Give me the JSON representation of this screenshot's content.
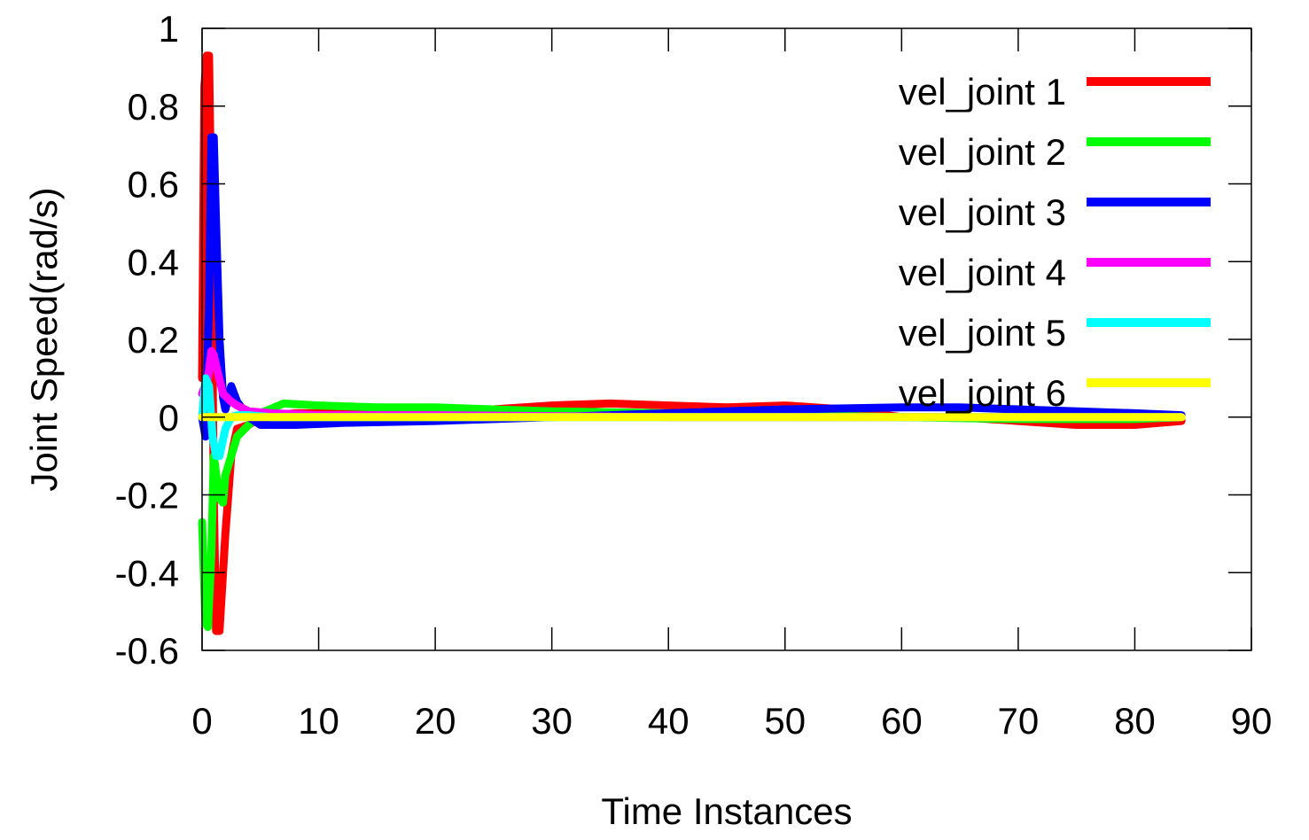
{
  "chart_data": {
    "type": "line",
    "xlabel": "Time Instances",
    "ylabel": "Joint Speed(rad/s)",
    "xlim": [
      0,
      90
    ],
    "ylim": [
      -0.6,
      1
    ],
    "x_ticks": [
      0,
      10,
      20,
      30,
      40,
      50,
      60,
      70,
      80,
      90
    ],
    "y_ticks": [
      -0.6,
      -0.4,
      -0.2,
      0,
      0.2,
      0.4,
      0.6,
      0.8,
      1
    ],
    "x_tick_labels": [
      "0",
      "10",
      "20",
      "30",
      "40",
      "50",
      "60",
      "70",
      "80",
      "90"
    ],
    "y_tick_labels": [
      "-0.6",
      "-0.4",
      "-0.2",
      "0",
      "0.2",
      "0.4",
      "0.6",
      "0.8",
      "1"
    ],
    "grid": false,
    "legend_position": "top-right",
    "series": [
      {
        "name": "vel_joint 1",
        "color": "#ff0000",
        "x": [
          0,
          0.2,
          0.4,
          0.6,
          0.8,
          1.0,
          1.2,
          1.5,
          2.0,
          2.5,
          3,
          4,
          5,
          8,
          12,
          20,
          25,
          30,
          35,
          40,
          45,
          50,
          55,
          60,
          65,
          70,
          75,
          80,
          84
        ],
        "y": [
          0.1,
          0.85,
          0.93,
          0.93,
          0.5,
          -0.2,
          -0.55,
          -0.55,
          -0.3,
          -0.1,
          -0.03,
          -0.02,
          0.0,
          0.01,
          0.01,
          0.02,
          0.02,
          0.03,
          0.035,
          0.03,
          0.025,
          0.03,
          0.02,
          0.0,
          0.0,
          -0.01,
          -0.02,
          -0.02,
          -0.01
        ]
      },
      {
        "name": "vel_joint 2",
        "color": "#00ff00",
        "x": [
          0,
          0.3,
          0.5,
          0.8,
          1.0,
          1.5,
          1.8,
          2.0,
          2.5,
          3,
          4,
          5,
          7,
          10,
          15,
          20,
          30,
          40,
          50,
          60,
          70,
          80,
          84
        ],
        "y": [
          -0.27,
          -0.53,
          -0.54,
          -0.35,
          -0.1,
          -0.21,
          -0.22,
          -0.15,
          -0.1,
          -0.05,
          -0.02,
          0.01,
          0.035,
          0.03,
          0.025,
          0.025,
          0.015,
          0.01,
          0.005,
          0.0,
          -0.005,
          -0.005,
          0.0
        ]
      },
      {
        "name": "vel_joint 3",
        "color": "#0000ff",
        "x": [
          0,
          0.3,
          0.6,
          0.8,
          1.0,
          1.2,
          1.5,
          1.8,
          2.0,
          2.5,
          3,
          4,
          5,
          8,
          12,
          20,
          30,
          40,
          50,
          60,
          65,
          70,
          80,
          84
        ],
        "y": [
          0.0,
          -0.05,
          0.3,
          0.72,
          0.72,
          0.5,
          0.2,
          0.05,
          0.02,
          0.08,
          0.04,
          0.0,
          -0.02,
          -0.02,
          -0.015,
          -0.01,
          0.0,
          0.01,
          0.02,
          0.025,
          0.025,
          0.02,
          0.01,
          0.005
        ]
      },
      {
        "name": "vel_joint 4",
        "color": "#ff00ff",
        "x": [
          0,
          0.5,
          0.8,
          1.0,
          1.3,
          1.8,
          2.5,
          3,
          4,
          6,
          10,
          20,
          40,
          60,
          80,
          84
        ],
        "y": [
          0.06,
          0.1,
          0.17,
          0.16,
          0.12,
          0.06,
          0.04,
          0.03,
          0.015,
          0.01,
          0.005,
          0.005,
          0.0,
          0.0,
          0.0,
          0.0
        ]
      },
      {
        "name": "vel_joint 5",
        "color": "#00ffff",
        "x": [
          0,
          0.3,
          0.6,
          0.9,
          1.2,
          1.5,
          2.0,
          2.5,
          3,
          4,
          6,
          10,
          20,
          40,
          60,
          80,
          84
        ],
        "y": [
          0.0,
          0.1,
          0.08,
          -0.05,
          -0.1,
          -0.1,
          -0.03,
          0.0,
          0.005,
          0.005,
          0.0,
          0.0,
          0.0,
          0.0,
          0.0,
          0.0,
          0.0
        ]
      },
      {
        "name": "vel_joint 6",
        "color": "#ffff00",
        "x": [
          0,
          1,
          2,
          5,
          10,
          20,
          30,
          40,
          50,
          60,
          70,
          80,
          84
        ],
        "y": [
          0.0,
          0.0,
          0.0,
          0.0,
          0.0,
          0.0,
          0.0,
          0.0,
          0.0,
          0.0,
          0.0,
          0.0,
          0.0
        ]
      }
    ]
  }
}
